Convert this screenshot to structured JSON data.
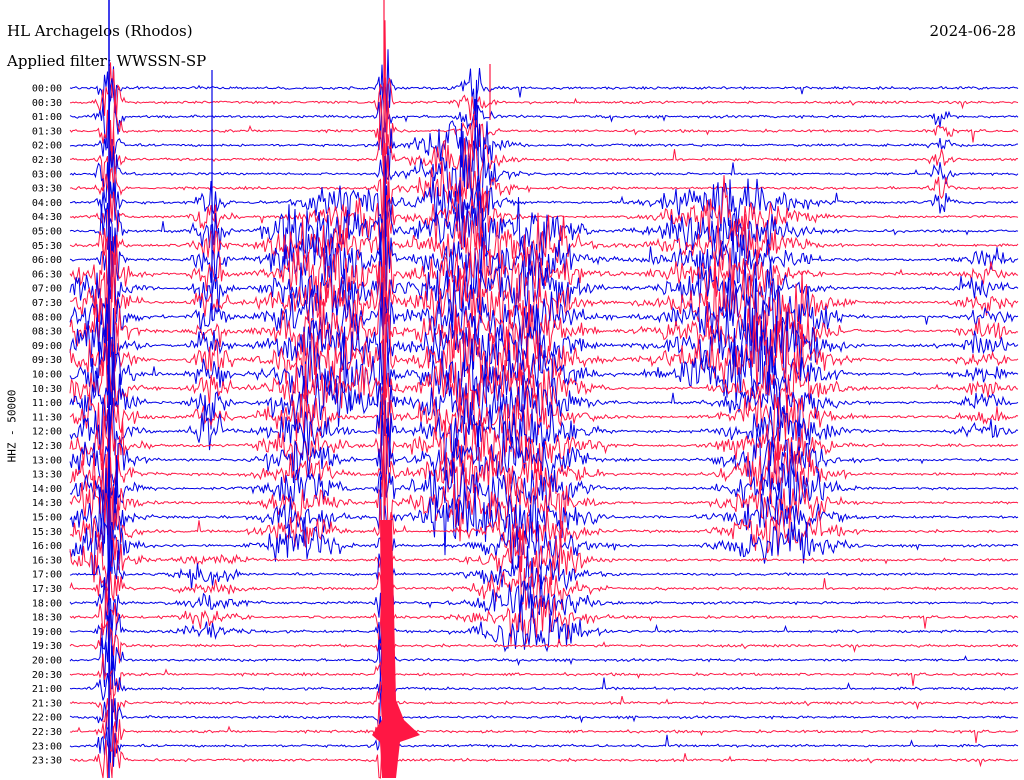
{
  "header": {
    "station": "HL Archagelos (Rhodos)",
    "filter": "Applied filter: WWSSN-SP",
    "date": "2024-06-28"
  },
  "chart_data": {
    "type": "line",
    "title": "HL Archagelos (Rhodos)",
    "subtitle": "Applied filter: WWSSN-SP",
    "ylabel": "HHZ - 50000",
    "y_tick_labels": [
      "00:00",
      "00:30",
      "01:00",
      "01:30",
      "02:00",
      "02:30",
      "03:00",
      "03:30",
      "04:00",
      "04:30",
      "05:00",
      "05:30",
      "06:00",
      "06:30",
      "07:00",
      "07:30",
      "08:00",
      "08:30",
      "09:00",
      "09:30",
      "10:00",
      "10:30",
      "11:00",
      "11:30",
      "12:00",
      "12:30",
      "13:00",
      "13:30",
      "14:00",
      "14:30",
      "15:00",
      "15:30",
      "16:00",
      "16:30",
      "17:00",
      "17:30",
      "18:00",
      "18:30",
      "19:00",
      "19:30",
      "20:00",
      "20:30",
      "21:00",
      "21:30",
      "22:00",
      "22:30",
      "23:00",
      "23:30"
    ],
    "trace_colors": [
      "#0000e6",
      "#ff1744"
    ],
    "grid": false,
    "legend": "none"
  },
  "colors": {
    "blue": "#0000e6",
    "red": "#ff1744"
  }
}
